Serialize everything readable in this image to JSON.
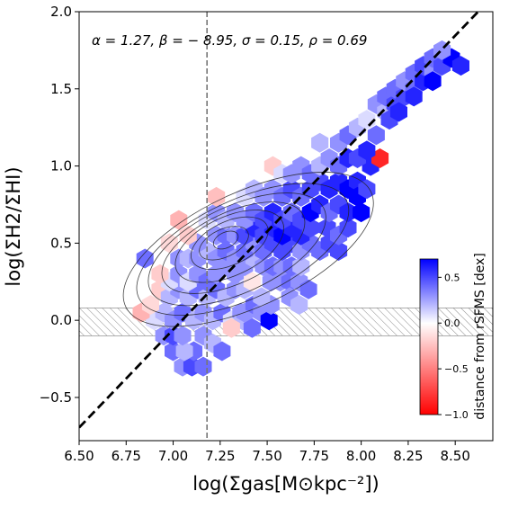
{
  "chart_data": {
    "type": "hexbin-scatter",
    "xlabel": "log(Σgas[M⊙kpc⁻²])",
    "ylabel": "log(ΣH2/ΣHI)",
    "xlim": [
      6.5,
      8.7
    ],
    "ylim": [
      -0.78,
      2.0
    ],
    "x_ticks": [
      "6.50",
      "6.75",
      "7.00",
      "7.25",
      "7.50",
      "7.75",
      "8.00",
      "8.25",
      "8.50"
    ],
    "y_ticks": [
      "−0.5",
      "0.0",
      "0.5",
      "1.0",
      "1.5",
      "2.0"
    ],
    "annotation": "α = 1.27, β = − 8.95, σ = 0.15, ρ = 0.69",
    "fit_line": {
      "slope": 1.27,
      "intercept": -8.95,
      "style": "dashed",
      "color": "#000000"
    },
    "vertical_line": {
      "x": 7.18,
      "style": "dashed",
      "color": "#777777"
    },
    "hatched_band": {
      "y_min": -0.1,
      "y_max": 0.08
    },
    "grid": false,
    "colorbar": {
      "label": "distance from rSFMS [dex]",
      "ticks": [
        "0.5",
        "0.0",
        "−0.5",
        "−1.0"
      ],
      "tick_values": [
        0.5,
        0.0,
        -0.5,
        -1.0
      ],
      "range": [
        -1.0,
        0.7
      ],
      "cmap": [
        "#ff0000",
        "#ffffff",
        "#0000ff"
      ],
      "position": "lower-right"
    },
    "contours": [
      {
        "cx": 7.28,
        "cy": 0.52,
        "rx": 0.07,
        "ry": 0.05,
        "rot": 25
      },
      {
        "cx": 7.27,
        "cy": 0.5,
        "rx": 0.14,
        "ry": 0.09,
        "rot": 25
      },
      {
        "cx": 7.3,
        "cy": 0.5,
        "rx": 0.22,
        "ry": 0.14,
        "rot": 25
      },
      {
        "cx": 7.3,
        "cy": 0.48,
        "rx": 0.31,
        "ry": 0.19,
        "rot": 25
      },
      {
        "cx": 7.32,
        "cy": 0.47,
        "rx": 0.41,
        "ry": 0.23,
        "rot": 25
      },
      {
        "cx": 7.34,
        "cy": 0.46,
        "rx": 0.51,
        "ry": 0.28,
        "rot": 25
      },
      {
        "cx": 7.37,
        "cy": 0.46,
        "rx": 0.61,
        "ry": 0.32,
        "rot": 25
      },
      {
        "cx": 7.4,
        "cy": 0.46,
        "rx": 0.72,
        "ry": 0.37,
        "rot": 25
      }
    ],
    "hexbins": [
      {
        "x": 7.05,
        "y": -0.3,
        "v": 0.3
      },
      {
        "x": 7.1,
        "y": -0.3,
        "v": 0.5
      },
      {
        "x": 7.11,
        "y": -0.2,
        "v": 0.4
      },
      {
        "x": 7.0,
        "y": -0.2,
        "v": 0.4
      },
      {
        "x": 7.06,
        "y": -0.2,
        "v": 0.2
      },
      {
        "x": 7.16,
        "y": -0.3,
        "v": 0.4
      },
      {
        "x": 6.95,
        "y": -0.1,
        "v": 0.3
      },
      {
        "x": 7.0,
        "y": -0.1,
        "v": 0.5
      },
      {
        "x": 7.05,
        "y": -0.1,
        "v": 0.3
      },
      {
        "x": 7.16,
        "y": -0.1,
        "v": 0.3
      },
      {
        "x": 7.21,
        "y": -0.15,
        "v": 0.2
      },
      {
        "x": 7.26,
        "y": -0.2,
        "v": 0.4
      },
      {
        "x": 6.9,
        "y": 0.0,
        "v": 0.1
      },
      {
        "x": 6.95,
        "y": 0.05,
        "v": 0.2
      },
      {
        "x": 7.0,
        "y": 0.0,
        "v": 0.3
      },
      {
        "x": 7.05,
        "y": 0.05,
        "v": 0.4
      },
      {
        "x": 7.11,
        "y": 0.0,
        "v": 0.2
      },
      {
        "x": 7.16,
        "y": 0.05,
        "v": 0.3
      },
      {
        "x": 7.21,
        "y": 0.0,
        "v": 0.2
      },
      {
        "x": 7.26,
        "y": 0.05,
        "v": 0.4
      },
      {
        "x": 7.31,
        "y": 0.0,
        "v": 0.1
      },
      {
        "x": 7.36,
        "y": 0.05,
        "v": 0.3
      },
      {
        "x": 7.37,
        "y": 0.0,
        "v": 0.2
      },
      {
        "x": 7.42,
        "y": -0.05,
        "v": 0.4
      },
      {
        "x": 6.83,
        "y": 0.05,
        "v": -0.3
      },
      {
        "x": 6.88,
        "y": 0.1,
        "v": -0.15
      },
      {
        "x": 7.31,
        "y": -0.05,
        "v": -0.2
      },
      {
        "x": 7.38,
        "y": 0.05,
        "v": 0.3
      },
      {
        "x": 7.43,
        "y": 0.1,
        "v": 0.4
      },
      {
        "x": 7.47,
        "y": 0.05,
        "v": 0.3
      },
      {
        "x": 7.51,
        "y": 0.0,
        "v": 0.7
      },
      {
        "x": 7.52,
        "y": 0.1,
        "v": 0.3
      },
      {
        "x": 7.47,
        "y": 0.15,
        "v": 0.2
      },
      {
        "x": 6.93,
        "y": 0.2,
        "v": -0.2
      },
      {
        "x": 6.98,
        "y": 0.15,
        "v": 0.2
      },
      {
        "x": 7.03,
        "y": 0.2,
        "v": 0.3
      },
      {
        "x": 7.08,
        "y": 0.15,
        "v": 0.2
      },
      {
        "x": 7.13,
        "y": 0.2,
        "v": 0.4
      },
      {
        "x": 7.18,
        "y": 0.15,
        "v": 0.2
      },
      {
        "x": 7.23,
        "y": 0.2,
        "v": 0.4
      },
      {
        "x": 7.28,
        "y": 0.15,
        "v": 0.2
      },
      {
        "x": 7.33,
        "y": 0.2,
        "v": 0.3
      },
      {
        "x": 7.38,
        "y": 0.2,
        "v": 0.2
      },
      {
        "x": 7.42,
        "y": 0.25,
        "v": -0.1
      },
      {
        "x": 7.52,
        "y": 0.25,
        "v": 0.3
      },
      {
        "x": 7.57,
        "y": 0.25,
        "v": 0.3
      },
      {
        "x": 7.62,
        "y": 0.25,
        "v": 0.4
      },
      {
        "x": 7.67,
        "y": 0.25,
        "v": 0.3
      },
      {
        "x": 7.72,
        "y": 0.2,
        "v": 0.4
      },
      {
        "x": 7.62,
        "y": 0.15,
        "v": 0.3
      },
      {
        "x": 7.67,
        "y": 0.1,
        "v": 0.2
      },
      {
        "x": 6.98,
        "y": 0.25,
        "v": 0.1
      },
      {
        "x": 7.03,
        "y": 0.3,
        "v": 0.3
      },
      {
        "x": 7.08,
        "y": 0.25,
        "v": 0.1
      },
      {
        "x": 7.13,
        "y": 0.3,
        "v": 0.3
      },
      {
        "x": 7.18,
        "y": 0.25,
        "v": 0.4
      },
      {
        "x": 7.23,
        "y": 0.3,
        "v": 0.3
      },
      {
        "x": 7.28,
        "y": 0.35,
        "v": 0.3
      },
      {
        "x": 7.33,
        "y": 0.3,
        "v": 0.3
      },
      {
        "x": 7.38,
        "y": 0.35,
        "v": 0.3
      },
      {
        "x": 7.43,
        "y": 0.4,
        "v": 0.2
      },
      {
        "x": 7.48,
        "y": 0.35,
        "v": 0.3
      },
      {
        "x": 7.53,
        "y": 0.35,
        "v": 0.4
      },
      {
        "x": 7.58,
        "y": 0.35,
        "v": 0.3
      },
      {
        "x": 7.63,
        "y": 0.35,
        "v": 0.4
      },
      {
        "x": 7.68,
        "y": 0.35,
        "v": 0.2
      },
      {
        "x": 6.93,
        "y": 0.3,
        "v": -0.2
      },
      {
        "x": 6.85,
        "y": 0.4,
        "v": 0.4
      },
      {
        "x": 7.03,
        "y": 0.4,
        "v": 0.3
      },
      {
        "x": 7.08,
        "y": 0.4,
        "v": 0.2
      },
      {
        "x": 7.13,
        "y": 0.4,
        "v": 0.3
      },
      {
        "x": 7.18,
        "y": 0.45,
        "v": 0.2
      },
      {
        "x": 7.23,
        "y": 0.4,
        "v": 0.3
      },
      {
        "x": 7.28,
        "y": 0.45,
        "v": 0.4
      },
      {
        "x": 7.33,
        "y": 0.4,
        "v": 0.3
      },
      {
        "x": 7.38,
        "y": 0.45,
        "v": 0.4
      },
      {
        "x": 7.43,
        "y": 0.5,
        "v": 0.3
      },
      {
        "x": 7.48,
        "y": 0.45,
        "v": 0.4
      },
      {
        "x": 7.53,
        "y": 0.5,
        "v": 0.5
      },
      {
        "x": 7.58,
        "y": 0.45,
        "v": 0.5
      },
      {
        "x": 7.63,
        "y": 0.5,
        "v": 0.5
      },
      {
        "x": 7.68,
        "y": 0.45,
        "v": 0.3
      },
      {
        "x": 7.73,
        "y": 0.5,
        "v": 0.4
      },
      {
        "x": 7.78,
        "y": 0.45,
        "v": 0.4
      },
      {
        "x": 7.83,
        "y": 0.5,
        "v": 0.5
      },
      {
        "x": 7.88,
        "y": 0.45,
        "v": 0.5
      },
      {
        "x": 7.13,
        "y": 0.5,
        "v": 0.3
      },
      {
        "x": 7.08,
        "y": 0.55,
        "v": -0.2
      },
      {
        "x": 6.98,
        "y": 0.5,
        "v": -0.15
      },
      {
        "x": 7.23,
        "y": 0.55,
        "v": 0.3
      },
      {
        "x": 7.28,
        "y": 0.55,
        "v": 0.4
      },
      {
        "x": 7.33,
        "y": 0.55,
        "v": 0.3
      },
      {
        "x": 7.38,
        "y": 0.55,
        "v": 0.5
      },
      {
        "x": 7.43,
        "y": 0.6,
        "v": 0.6
      },
      {
        "x": 7.48,
        "y": 0.55,
        "v": 0.5
      },
      {
        "x": 7.53,
        "y": 0.6,
        "v": 0.6
      },
      {
        "x": 7.58,
        "y": 0.55,
        "v": 0.7
      },
      {
        "x": 7.63,
        "y": 0.6,
        "v": 0.6
      },
      {
        "x": 7.68,
        "y": 0.55,
        "v": 0.6
      },
      {
        "x": 7.73,
        "y": 0.6,
        "v": 0.5
      },
      {
        "x": 7.82,
        "y": 0.6,
        "v": 0.5
      },
      {
        "x": 7.88,
        "y": 0.55,
        "v": 0.4
      },
      {
        "x": 7.93,
        "y": 0.6,
        "v": 0.5
      },
      {
        "x": 7.03,
        "y": 0.65,
        "v": -0.3
      },
      {
        "x": 7.18,
        "y": 0.65,
        "v": 0.1
      },
      {
        "x": 7.23,
        "y": 0.7,
        "v": 0.3
      },
      {
        "x": 7.28,
        "y": 0.65,
        "v": 0.2
      },
      {
        "x": 7.33,
        "y": 0.7,
        "v": 0.3
      },
      {
        "x": 7.38,
        "y": 0.65,
        "v": 0.3
      },
      {
        "x": 7.43,
        "y": 0.7,
        "v": 0.4
      },
      {
        "x": 7.48,
        "y": 0.65,
        "v": 0.5
      },
      {
        "x": 7.53,
        "y": 0.7,
        "v": 0.6
      },
      {
        "x": 7.58,
        "y": 0.65,
        "v": 0.5
      },
      {
        "x": 7.63,
        "y": 0.7,
        "v": 0.4
      },
      {
        "x": 7.68,
        "y": 0.65,
        "v": 0.5
      },
      {
        "x": 7.73,
        "y": 0.7,
        "v": 0.7
      },
      {
        "x": 7.78,
        "y": 0.75,
        "v": 0.6
      },
      {
        "x": 7.83,
        "y": 0.7,
        "v": 0.4
      },
      {
        "x": 7.88,
        "y": 0.75,
        "v": 0.5
      },
      {
        "x": 7.93,
        "y": 0.7,
        "v": 0.6
      },
      {
        "x": 7.23,
        "y": 0.8,
        "v": -0.25
      },
      {
        "x": 7.38,
        "y": 0.8,
        "v": 0.1
      },
      {
        "x": 7.43,
        "y": 0.85,
        "v": 0.2
      },
      {
        "x": 7.48,
        "y": 0.8,
        "v": 0.3
      },
      {
        "x": 7.53,
        "y": 0.85,
        "v": 0.3
      },
      {
        "x": 7.58,
        "y": 0.8,
        "v": 0.4
      },
      {
        "x": 7.63,
        "y": 0.85,
        "v": 0.5
      },
      {
        "x": 7.68,
        "y": 0.8,
        "v": 0.4
      },
      {
        "x": 7.73,
        "y": 0.85,
        "v": 0.5
      },
      {
        "x": 7.78,
        "y": 0.9,
        "v": 0.5
      },
      {
        "x": 7.83,
        "y": 0.85,
        "v": 0.6
      },
      {
        "x": 7.88,
        "y": 0.9,
        "v": 0.6
      },
      {
        "x": 7.93,
        "y": 0.85,
        "v": 0.7
      },
      {
        "x": 7.98,
        "y": 0.9,
        "v": 0.6
      },
      {
        "x": 7.98,
        "y": 0.8,
        "v": 0.7
      },
      {
        "x": 8.03,
        "y": 0.85,
        "v": 0.5
      },
      {
        "x": 8.0,
        "y": 0.7,
        "v": 0.7
      },
      {
        "x": 8.05,
        "y": 1.0,
        "v": 0.6
      },
      {
        "x": 8.1,
        "y": 1.05,
        "v": -0.85
      },
      {
        "x": 7.53,
        "y": 1.0,
        "v": -0.2
      },
      {
        "x": 7.58,
        "y": 0.95,
        "v": 0.1
      },
      {
        "x": 7.63,
        "y": 0.95,
        "v": 0.3
      },
      {
        "x": 7.68,
        "y": 1.0,
        "v": 0.3
      },
      {
        "x": 7.73,
        "y": 0.95,
        "v": 0.4
      },
      {
        "x": 7.78,
        "y": 1.0,
        "v": 0.2
      },
      {
        "x": 7.83,
        "y": 1.05,
        "v": 0.3
      },
      {
        "x": 7.88,
        "y": 1.0,
        "v": 0.4
      },
      {
        "x": 7.93,
        "y": 1.05,
        "v": 0.6
      },
      {
        "x": 7.98,
        "y": 1.05,
        "v": 0.5
      },
      {
        "x": 8.03,
        "y": 1.1,
        "v": 0.6
      },
      {
        "x": 7.78,
        "y": 1.15,
        "v": 0.2
      },
      {
        "x": 7.88,
        "y": 1.15,
        "v": 0.3
      },
      {
        "x": 7.93,
        "y": 1.2,
        "v": 0.4
      },
      {
        "x": 7.98,
        "y": 1.25,
        "v": 0.2
      },
      {
        "x": 8.08,
        "y": 1.2,
        "v": 0.4
      },
      {
        "x": 8.03,
        "y": 1.3,
        "v": 0.1
      },
      {
        "x": 8.08,
        "y": 1.4,
        "v": 0.3
      },
      {
        "x": 8.13,
        "y": 1.35,
        "v": 0.2
      },
      {
        "x": 8.13,
        "y": 1.45,
        "v": 0.4
      },
      {
        "x": 8.18,
        "y": 1.4,
        "v": 0.5
      },
      {
        "x": 8.18,
        "y": 1.5,
        "v": 0.4
      },
      {
        "x": 8.23,
        "y": 1.45,
        "v": 0.5
      },
      {
        "x": 8.23,
        "y": 1.55,
        "v": 0.3
      },
      {
        "x": 8.28,
        "y": 1.5,
        "v": 0.4
      },
      {
        "x": 8.28,
        "y": 1.6,
        "v": 0.4
      },
      {
        "x": 8.33,
        "y": 1.55,
        "v": 0.6
      },
      {
        "x": 8.33,
        "y": 1.65,
        "v": 0.5
      },
      {
        "x": 8.38,
        "y": 1.6,
        "v": 0.3
      },
      {
        "x": 8.38,
        "y": 1.7,
        "v": 0.4
      },
      {
        "x": 8.43,
        "y": 1.65,
        "v": 0.5
      },
      {
        "x": 8.48,
        "y": 1.7,
        "v": 0.7
      },
      {
        "x": 8.53,
        "y": 1.65,
        "v": 0.6
      },
      {
        "x": 8.43,
        "y": 1.75,
        "v": 0.3
      },
      {
        "x": 8.28,
        "y": 1.45,
        "v": 0.6
      },
      {
        "x": 8.38,
        "y": 1.55,
        "v": 0.7
      },
      {
        "x": 8.15,
        "y": 1.3,
        "v": 0.5
      },
      {
        "x": 8.2,
        "y": 1.35,
        "v": 0.6
      }
    ]
  }
}
